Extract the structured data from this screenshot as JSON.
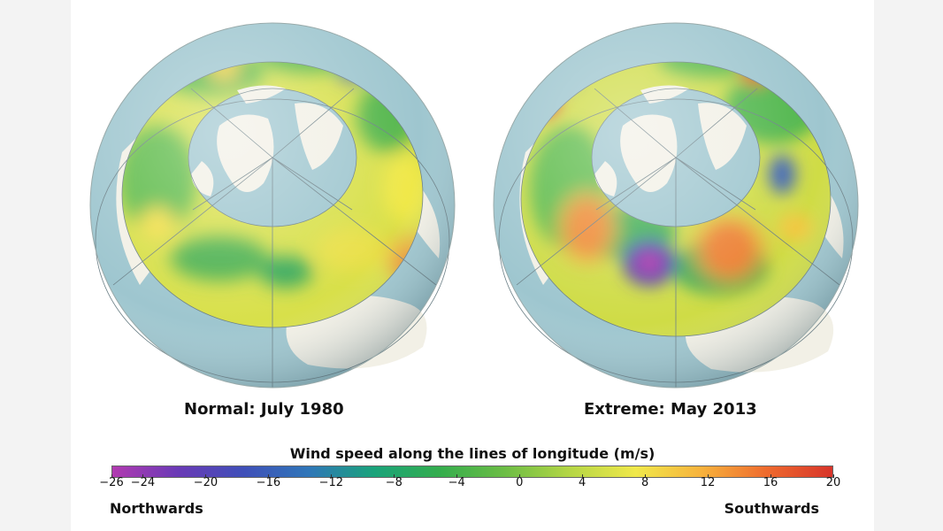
{
  "panels": [
    {
      "title": "Normal: July 1980"
    },
    {
      "title": "Extreme: May 2013"
    }
  ],
  "scale": {
    "title": "Wind speed along the lines of longitude (m/s)",
    "min": -26,
    "max": 20,
    "ticks": [
      "−26",
      "−24",
      "−20",
      "−16",
      "−12",
      "−8",
      "−4",
      "0",
      "4",
      "8",
      "12",
      "16",
      "20"
    ],
    "tick_values": [
      -26,
      -24,
      -20,
      -16,
      -12,
      -8,
      -4,
      0,
      4,
      8,
      12,
      16,
      20
    ],
    "left_label": "Northwards",
    "right_label": "Southwards",
    "colors": [
      "#b13ab0",
      "#6a3ab6",
      "#3f4fb8",
      "#2f76b8",
      "#1aa37a",
      "#34ad4d",
      "#6cbd45",
      "#b5d645",
      "#f0e84a",
      "#f7b23c",
      "#ee6a2e",
      "#d7342a"
    ]
  },
  "colors": {
    "ocean": "#9ec6cf",
    "land": "#f2f0e6",
    "grid": "#6b7f86"
  }
}
